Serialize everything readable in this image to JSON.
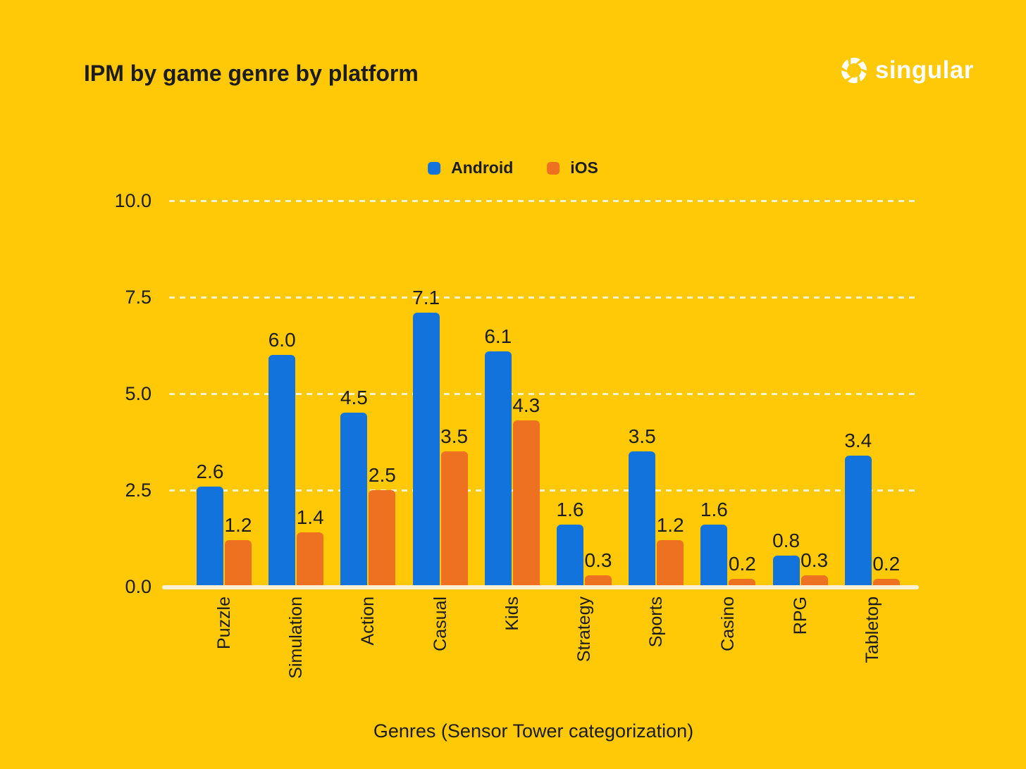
{
  "logo_text": "singular",
  "chart_data": {
    "type": "bar",
    "title": "IPM by game genre by platform",
    "xlabel": "Genres (Sensor Tower categorization)",
    "ylabel": "",
    "ylim": [
      0,
      10
    ],
    "yticks": [
      0.0,
      2.5,
      5.0,
      7.5,
      10.0
    ],
    "grid": "horizontal dashed",
    "legend_position": "top-center",
    "background_color": "#FFC907",
    "text_color": "#1C1C1C",
    "axis_line_color": "#FBF2D6",
    "gridline_color": "rgba(255,255,255,0.78)",
    "categories": [
      "Puzzle",
      "Simulation",
      "Action",
      "Casual",
      "Kids",
      "Strategy",
      "Sports",
      "Casino",
      "RPG",
      "Tabletop"
    ],
    "series": [
      {
        "name": "Android",
        "color": "#1373DD",
        "values": [
          2.6,
          6.0,
          4.5,
          7.1,
          6.1,
          1.6,
          3.5,
          1.6,
          0.8,
          3.4
        ]
      },
      {
        "name": "iOS",
        "color": "#EE7122",
        "values": [
          1.2,
          1.4,
          2.5,
          3.5,
          4.3,
          0.3,
          1.2,
          0.2,
          0.3,
          0.2
        ]
      }
    ]
  }
}
